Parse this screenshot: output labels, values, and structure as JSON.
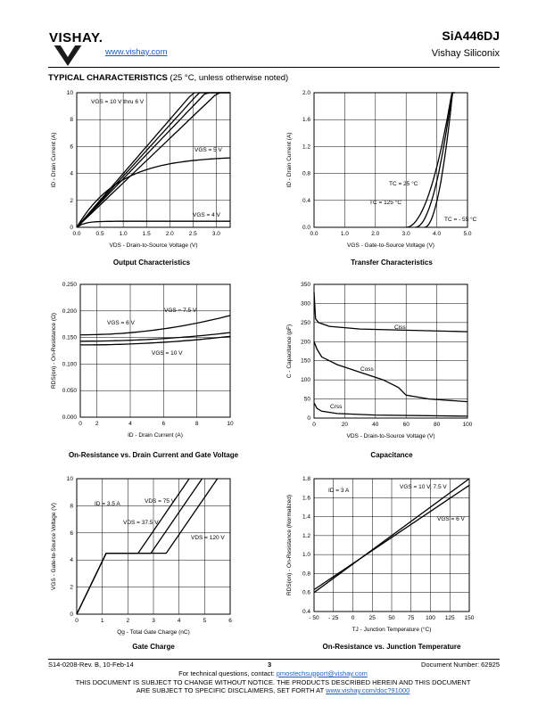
{
  "header": {
    "logo_text": "VISHAY.",
    "url": "www.vishay.com",
    "part_number": "SiA446DJ",
    "company": "Vishay Siliconix"
  },
  "section": {
    "title": "TYPICAL CHARACTERISTICS",
    "subtitle": "(25 °C, unless otherwise noted)"
  },
  "charts": {
    "c1": {
      "caption": "Output Characteristics",
      "xlabel": "VDS - Drain-to-Source Voltage (V)",
      "ylabel": "ID - Drain Current (A)",
      "xticks": [
        "0.0",
        "0.5",
        "1.0",
        "1.5",
        "2.0",
        "2.5",
        "3.0"
      ],
      "yticks": [
        "0",
        "2",
        "4",
        "6",
        "8",
        "10"
      ],
      "labels": [
        "VGS = 10 V thru 6 V",
        "VGS = 5 V",
        "VGS = 4 V"
      ]
    },
    "c2": {
      "caption": "Transfer Characteristics",
      "xlabel": "VGS - Gate-to-Source Voltage (V)",
      "ylabel": "ID - Drain Current (A)",
      "xticks": [
        "0.0",
        "1.0",
        "2.0",
        "3.0",
        "4.0",
        "5.0"
      ],
      "yticks": [
        "0.0",
        "0.4",
        "0.8",
        "1.2",
        "1.6",
        "2.0"
      ],
      "labels": [
        "TC = 25 °C",
        "TC = 125 °C",
        "TC = - 55 °C"
      ]
    },
    "c3": {
      "caption": "On-Resistance vs. Drain Current and Gate Voltage",
      "xlabel": "ID - Drain Current (A)",
      "ylabel": "RDS(on) - On-Resistance (Ω)",
      "xticks": [
        "0",
        "2",
        "4",
        "6",
        "8",
        "10"
      ],
      "yticks": [
        "0.000",
        "0.050",
        "0.100",
        "0.150",
        "0.200",
        "0.250"
      ],
      "labels": [
        "VGS = 6 V",
        "VGS = 7.5 V",
        "VGS = 10 V"
      ]
    },
    "c4": {
      "caption": "Capacitance",
      "xlabel": "VDS - Drain-to-Source Voltage (V)",
      "ylabel": "C - Capacitance (pF)",
      "xticks": [
        "0",
        "20",
        "40",
        "60",
        "80",
        "100"
      ],
      "yticks": [
        "0",
        "50",
        "100",
        "150",
        "200",
        "250",
        "300",
        "350"
      ],
      "labels": [
        "Ciss",
        "Coss",
        "Crss"
      ]
    },
    "c5": {
      "caption": "Gate Charge",
      "xlabel": "Qg - Total Gate Charge (nC)",
      "ylabel": "VGS - Gate-to-Source Voltage (V)",
      "xticks": [
        "0",
        "1",
        "2",
        "3",
        "4",
        "5",
        "6"
      ],
      "yticks": [
        "0",
        "2",
        "4",
        "6",
        "8",
        "10"
      ],
      "labels": [
        "ID = 3.5 A",
        "VDS = 75 V",
        "VDS = 37.5 V",
        "VDS = 120 V"
      ]
    },
    "c6": {
      "caption": "On-Resistance vs. Junction Temperature",
      "xlabel": "TJ - Junction Temperature (°C)",
      "ylabel": "RDS(on) - On-Resistance (Normalized)",
      "xticks": [
        "- 50",
        "- 25",
        "0",
        "25",
        "50",
        "75",
        "100",
        "125",
        "150"
      ],
      "yticks": [
        "0.4",
        "0.6",
        "0.8",
        "1.0",
        "1.2",
        "1.4",
        "1.6",
        "1.8"
      ],
      "labels": [
        "ID = 3 A",
        "VGS = 10 V, 7.5 V",
        "VGS = 6 V"
      ]
    }
  },
  "footer": {
    "docrev": "S14-0208-Rev. B, 10-Feb-14",
    "page": "3",
    "docnum": "Document Number: 62925",
    "questions_prefix": "For technical questions, contact: ",
    "questions_email": "pmostechsupport@vishay.com",
    "notice1": "THIS DOCUMENT IS SUBJECT TO CHANGE WITHOUT NOTICE. THE PRODUCTS DESCRIBED HEREIN AND THIS DOCUMENT",
    "notice2_prefix": "ARE SUBJECT TO SPECIFIC DISCLAIMERS, SET FORTH AT ",
    "notice2_link": "www.vishay.com/doc?91000"
  }
}
